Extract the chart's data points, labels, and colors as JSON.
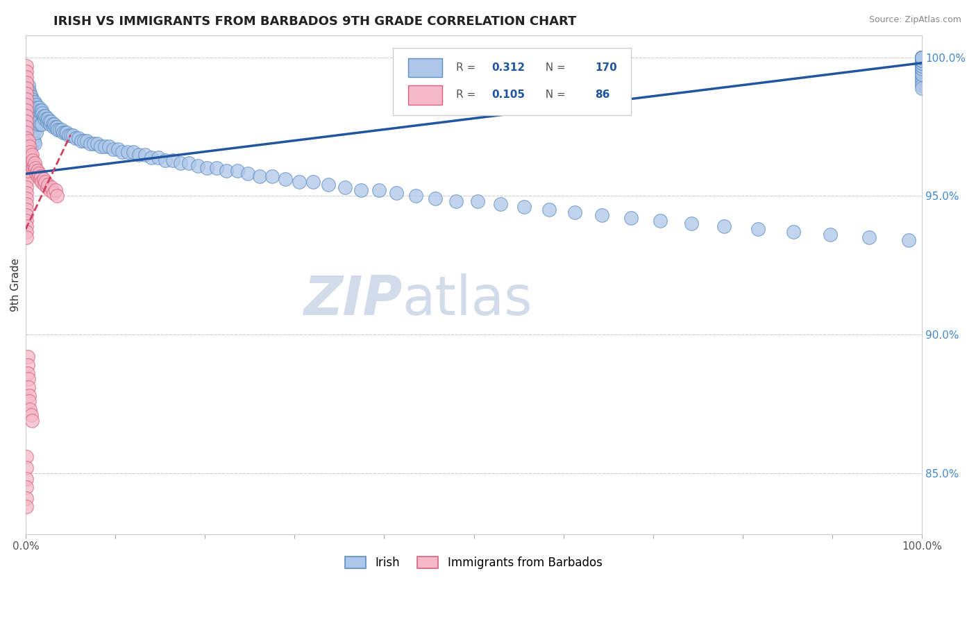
{
  "title": "IRISH VS IMMIGRANTS FROM BARBADOS 9TH GRADE CORRELATION CHART",
  "source_text": "Source: ZipAtlas.com",
  "ylabel": "9th Grade",
  "xlim": [
    0.0,
    1.0
  ],
  "ylim": [
    0.828,
    1.008
  ],
  "xticks": [
    0.0,
    0.1,
    0.2,
    0.3,
    0.4,
    0.5,
    0.6,
    0.7,
    0.8,
    0.9,
    1.0
  ],
  "xticklabels": [
    "0.0%",
    "",
    "",
    "",
    "",
    "",
    "",
    "",
    "",
    "",
    "100.0%"
  ],
  "yticks_right": [
    0.85,
    0.9,
    0.95,
    1.0
  ],
  "yticklabels_right": [
    "85.0%",
    "90.0%",
    "95.0%",
    "100.0%"
  ],
  "legend_irish_R": "0.312",
  "legend_irish_N": "170",
  "legend_barbados_R": "0.105",
  "legend_barbados_N": "86",
  "irish_face_color": "#aec6e8",
  "irish_edge_color": "#5b8ec4",
  "barbados_face_color": "#f5b8c8",
  "barbados_edge_color": "#d96080",
  "irish_line_color": "#2255a0",
  "barbados_line_color": "#d04060",
  "grid_color": "#cccccc",
  "background_color": "#ffffff",
  "watermark_color": "#ccd8e8",
  "title_fontsize": 13,
  "irish_scatter_x": [
    0.002,
    0.003,
    0.003,
    0.003,
    0.004,
    0.004,
    0.004,
    0.005,
    0.005,
    0.005,
    0.005,
    0.006,
    0.006,
    0.006,
    0.006,
    0.007,
    0.007,
    0.007,
    0.008,
    0.008,
    0.008,
    0.009,
    0.009,
    0.009,
    0.01,
    0.01,
    0.01,
    0.01,
    0.011,
    0.011,
    0.012,
    0.012,
    0.012,
    0.013,
    0.013,
    0.014,
    0.014,
    0.015,
    0.015,
    0.016,
    0.016,
    0.017,
    0.018,
    0.018,
    0.019,
    0.02,
    0.021,
    0.022,
    0.023,
    0.024,
    0.025,
    0.026,
    0.027,
    0.028,
    0.03,
    0.031,
    0.032,
    0.033,
    0.035,
    0.036,
    0.038,
    0.04,
    0.042,
    0.044,
    0.046,
    0.048,
    0.05,
    0.053,
    0.056,
    0.059,
    0.062,
    0.065,
    0.068,
    0.072,
    0.076,
    0.08,
    0.084,
    0.088,
    0.093,
    0.098,
    0.103,
    0.108,
    0.114,
    0.12,
    0.126,
    0.133,
    0.14,
    0.148,
    0.156,
    0.164,
    0.173,
    0.182,
    0.192,
    0.202,
    0.213,
    0.224,
    0.236,
    0.248,
    0.261,
    0.275,
    0.29,
    0.305,
    0.321,
    0.338,
    0.356,
    0.374,
    0.394,
    0.414,
    0.435,
    0.457,
    0.48,
    0.504,
    0.53,
    0.556,
    0.584,
    0.613,
    0.643,
    0.675,
    0.708,
    0.743,
    0.779,
    0.817,
    0.857,
    0.898,
    0.941,
    0.985,
    1.0,
    1.0,
    1.0,
    1.0,
    1.0,
    1.0,
    1.0,
    1.0,
    1.0,
    1.0,
    1.0,
    1.0,
    1.0,
    1.0,
    1.0,
    1.0,
    1.0,
    1.0,
    1.0,
    1.0,
    1.0,
    1.0,
    1.0,
    1.0,
    1.0,
    1.0,
    1.0,
    1.0,
    1.0,
    1.0,
    1.0,
    1.0,
    1.0,
    1.0,
    1.0,
    1.0,
    1.0,
    1.0,
    1.0,
    1.0,
    1.0,
    1.0,
    1.0,
    1.0
  ],
  "irish_scatter_y": [
    0.986,
    0.99,
    0.983,
    0.977,
    0.988,
    0.981,
    0.975,
    0.987,
    0.98,
    0.974,
    0.969,
    0.986,
    0.979,
    0.973,
    0.968,
    0.985,
    0.978,
    0.972,
    0.984,
    0.977,
    0.971,
    0.983,
    0.976,
    0.97,
    0.984,
    0.979,
    0.974,
    0.969,
    0.982,
    0.977,
    0.983,
    0.978,
    0.973,
    0.982,
    0.977,
    0.981,
    0.976,
    0.982,
    0.977,
    0.981,
    0.976,
    0.98,
    0.981,
    0.976,
    0.98,
    0.979,
    0.978,
    0.979,
    0.978,
    0.977,
    0.978,
    0.977,
    0.976,
    0.977,
    0.976,
    0.975,
    0.976,
    0.975,
    0.975,
    0.974,
    0.974,
    0.974,
    0.973,
    0.973,
    0.973,
    0.972,
    0.972,
    0.972,
    0.971,
    0.971,
    0.97,
    0.97,
    0.97,
    0.969,
    0.969,
    0.969,
    0.968,
    0.968,
    0.968,
    0.967,
    0.967,
    0.966,
    0.966,
    0.966,
    0.965,
    0.965,
    0.964,
    0.964,
    0.963,
    0.963,
    0.962,
    0.962,
    0.961,
    0.96,
    0.96,
    0.959,
    0.959,
    0.958,
    0.957,
    0.957,
    0.956,
    0.955,
    0.955,
    0.954,
    0.953,
    0.952,
    0.952,
    0.951,
    0.95,
    0.949,
    0.948,
    0.948,
    0.947,
    0.946,
    0.945,
    0.944,
    0.943,
    0.942,
    0.941,
    0.94,
    0.939,
    0.938,
    0.937,
    0.936,
    0.935,
    0.934,
    0.994,
    0.993,
    0.992,
    0.991,
    0.99,
    0.989,
    0.998,
    0.997,
    0.996,
    0.995,
    0.994,
    0.999,
    0.998,
    0.997,
    0.996,
    0.999,
    0.998,
    0.997,
    0.999,
    0.998,
    0.999,
    0.998,
    1.0,
    0.999,
    1.0,
    0.999,
    1.0,
    0.999,
    1.0,
    0.999,
    1.0,
    0.999,
    1.0,
    0.999,
    1.0,
    0.999,
    1.0,
    1.0,
    1.0,
    1.0,
    1.0,
    1.0,
    1.0,
    1.0
  ],
  "barbados_scatter_x": [
    0.001,
    0.001,
    0.001,
    0.001,
    0.001,
    0.001,
    0.001,
    0.001,
    0.001,
    0.001,
    0.001,
    0.001,
    0.001,
    0.001,
    0.001,
    0.001,
    0.001,
    0.001,
    0.001,
    0.001,
    0.001,
    0.001,
    0.001,
    0.001,
    0.001,
    0.001,
    0.001,
    0.001,
    0.001,
    0.001,
    0.001,
    0.001,
    0.002,
    0.002,
    0.002,
    0.002,
    0.003,
    0.003,
    0.003,
    0.004,
    0.004,
    0.005,
    0.005,
    0.006,
    0.006,
    0.007,
    0.007,
    0.008,
    0.008,
    0.009,
    0.01,
    0.01,
    0.011,
    0.012,
    0.013,
    0.014,
    0.015,
    0.016,
    0.017,
    0.018,
    0.02,
    0.021,
    0.022,
    0.024,
    0.025,
    0.027,
    0.029,
    0.031,
    0.033,
    0.035,
    0.002,
    0.002,
    0.002,
    0.003,
    0.003,
    0.004,
    0.004,
    0.005,
    0.006,
    0.007,
    0.001,
    0.001,
    0.001,
    0.001,
    0.001,
    0.001
  ],
  "barbados_scatter_y": [
    0.997,
    0.995,
    0.993,
    0.991,
    0.989,
    0.987,
    0.985,
    0.983,
    0.981,
    0.979,
    0.977,
    0.975,
    0.973,
    0.971,
    0.969,
    0.967,
    0.965,
    0.963,
    0.961,
    0.959,
    0.957,
    0.955,
    0.953,
    0.951,
    0.949,
    0.947,
    0.945,
    0.943,
    0.941,
    0.939,
    0.937,
    0.935,
    0.968,
    0.965,
    0.962,
    0.959,
    0.97,
    0.967,
    0.964,
    0.968,
    0.965,
    0.966,
    0.963,
    0.964,
    0.961,
    0.965,
    0.962,
    0.963,
    0.96,
    0.961,
    0.962,
    0.959,
    0.96,
    0.958,
    0.959,
    0.957,
    0.958,
    0.956,
    0.957,
    0.955,
    0.956,
    0.954,
    0.955,
    0.953,
    0.954,
    0.952,
    0.953,
    0.951,
    0.952,
    0.95,
    0.892,
    0.889,
    0.886,
    0.884,
    0.881,
    0.878,
    0.876,
    0.873,
    0.871,
    0.869,
    0.856,
    0.852,
    0.848,
    0.845,
    0.841,
    0.838
  ],
  "irish_trend_x": [
    0.0,
    1.0
  ],
  "irish_trend_y": [
    0.958,
    0.998
  ],
  "barbados_trend_x": [
    0.0,
    0.05
  ],
  "barbados_trend_y": [
    0.938,
    0.972
  ]
}
